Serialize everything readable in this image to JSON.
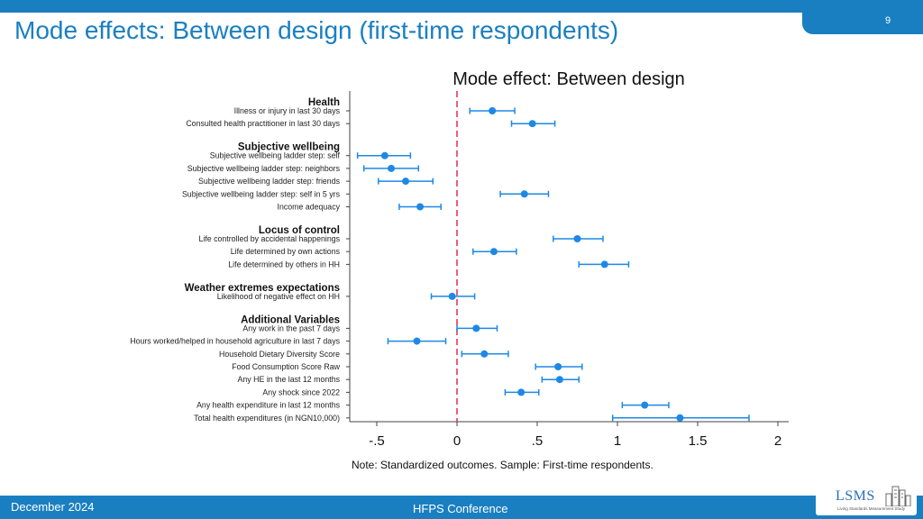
{
  "slide": {
    "title": "Mode effects: Between design (first-time respondents)",
    "page_number": "9",
    "footer_date": "December 2024",
    "footer_conference": "HFPS Conference",
    "logo_text": "LSMS",
    "logo_subtext": "Living Standards Measurement Study"
  },
  "colors": {
    "accent": "#1a7fc1",
    "point": "#1e88e5",
    "zero_line": "#e8365d"
  },
  "chart_data": {
    "type": "scatter",
    "title": "Mode effect: Between design",
    "note": "Note: Standardized outcomes. Sample: First-time respondents.",
    "xlim": [
      -0.7,
      2.05
    ],
    "xticks": [
      -0.5,
      0,
      0.5,
      1,
      1.5,
      2
    ],
    "xtick_labels": [
      "-.5",
      "0",
      ".5",
      "1",
      "1.5",
      "2"
    ],
    "reference_line": 0,
    "groups": [
      {
        "header": "Health",
        "items": [
          {
            "label": "Illness or injury in last 30 days",
            "estimate": 0.22,
            "ci": [
              0.08,
              0.36
            ]
          },
          {
            "label": "Consulted health practitioner in last 30 days",
            "estimate": 0.47,
            "ci": [
              0.34,
              0.61
            ]
          }
        ]
      },
      {
        "header": "Subjective wellbeing",
        "items": [
          {
            "label": "Subjective wellbeing ladder step: self",
            "estimate": -0.45,
            "ci": [
              -0.62,
              -0.29
            ]
          },
          {
            "label": "Subjective wellbeing ladder step: neighbors",
            "estimate": -0.41,
            "ci": [
              -0.58,
              -0.24
            ]
          },
          {
            "label": "Subjective wellbeing ladder step: friends",
            "estimate": -0.32,
            "ci": [
              -0.49,
              -0.15
            ]
          },
          {
            "label": "Subjective wellbeing ladder step: self in 5 yrs",
            "estimate": 0.42,
            "ci": [
              0.27,
              0.57
            ]
          },
          {
            "label": "Income adequacy",
            "estimate": -0.23,
            "ci": [
              -0.36,
              -0.1
            ]
          }
        ]
      },
      {
        "header": "Locus of control",
        "items": [
          {
            "label": "Life controlled by accidental happenings",
            "estimate": 0.75,
            "ci": [
              0.6,
              0.91
            ]
          },
          {
            "label": "Life determined by own actions",
            "estimate": 0.23,
            "ci": [
              0.1,
              0.37
            ]
          },
          {
            "label": "Life determined by others in HH",
            "estimate": 0.92,
            "ci": [
              0.76,
              1.07
            ]
          }
        ]
      },
      {
        "header": "Weather extremes expectations",
        "items": [
          {
            "label": "Likelihood of negative effect on HH",
            "estimate": -0.03,
            "ci": [
              -0.16,
              0.11
            ]
          }
        ]
      },
      {
        "header": "Additional Variables",
        "items": [
          {
            "label": "Any work in the past 7 days",
            "estimate": 0.12,
            "ci": [
              0.0,
              0.25
            ]
          },
          {
            "label": "Hours worked/helped in household agriculture in last 7 days",
            "estimate": -0.25,
            "ci": [
              -0.43,
              -0.07
            ]
          },
          {
            "label": "Household Dietary Diversity Score",
            "estimate": 0.17,
            "ci": [
              0.03,
              0.32
            ]
          },
          {
            "label": "Food Consumption Score Raw",
            "estimate": 0.63,
            "ci": [
              0.49,
              0.78
            ]
          },
          {
            "label": "Any HE in the last 12 months",
            "estimate": 0.64,
            "ci": [
              0.53,
              0.76
            ]
          },
          {
            "label": "Any shock since 2022",
            "estimate": 0.4,
            "ci": [
              0.3,
              0.51
            ]
          },
          {
            "label": "Any health expenditure in last 12 months",
            "estimate": 1.17,
            "ci": [
              1.03,
              1.32
            ]
          },
          {
            "label": "Total health expenditures (in NGN10,000)",
            "estimate": 1.39,
            "ci": [
              0.97,
              1.82
            ]
          }
        ]
      }
    ]
  }
}
